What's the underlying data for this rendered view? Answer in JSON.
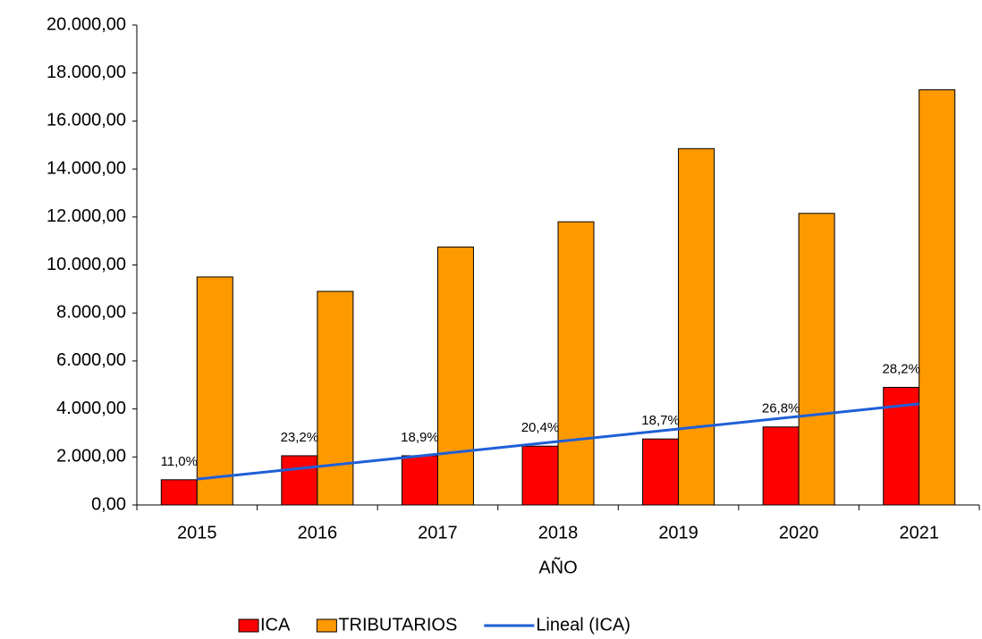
{
  "chart_data": {
    "type": "bar",
    "x_label": "AÑO",
    "categories": [
      "2015",
      "2016",
      "2017",
      "2018",
      "2019",
      "2020",
      "2021"
    ],
    "series": [
      {
        "name": "ICA",
        "color": "#ff0000",
        "values": [
          1050,
          2050,
          2050,
          2450,
          2750,
          3250,
          4900
        ],
        "data_labels": [
          "11,0%",
          "23,2%",
          "18,9%",
          "20,4%",
          "18,7%",
          "26,8%",
          "28,2%"
        ]
      },
      {
        "name": "TRIBUTARIOS",
        "color": "#ff9900",
        "values": [
          9500,
          8900,
          10750,
          11800,
          14850,
          12150,
          17300
        ]
      }
    ],
    "trendline": {
      "name": "Lineal (ICA)",
      "color": "#1f5fd6",
      "values": [
        1074,
        1597,
        2120,
        2643,
        3166,
        3689,
        4212
      ]
    },
    "ylim": [
      0,
      20000
    ],
    "yticks": [
      {
        "value": 0,
        "label": "0,00"
      },
      {
        "value": 2000,
        "label": "2.000,00"
      },
      {
        "value": 4000,
        "label": "4.000,00"
      },
      {
        "value": 6000,
        "label": "6.000,00"
      },
      {
        "value": 8000,
        "label": "8.000,00"
      },
      {
        "value": 10000,
        "label": "10.000,00"
      },
      {
        "value": 12000,
        "label": "12.000,00"
      },
      {
        "value": 14000,
        "label": "14.000,00"
      },
      {
        "value": 16000,
        "label": "16.000,00"
      },
      {
        "value": 18000,
        "label": "18.000,00"
      },
      {
        "value": 20000,
        "label": "20.000,00"
      }
    ],
    "grid": false,
    "legend": "bottom"
  }
}
